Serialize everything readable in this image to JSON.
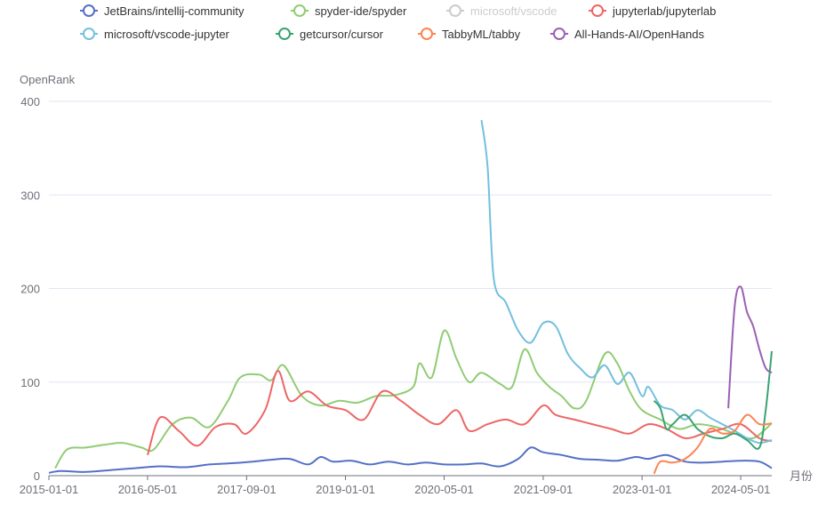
{
  "chart_data": {
    "type": "line",
    "title": "",
    "ylabel": "OpenRank",
    "xlabel": "月份",
    "ylim": [
      0,
      400
    ],
    "y_ticks": [
      0,
      100,
      200,
      300,
      400
    ],
    "x_ticks": [
      "2015-01-01",
      "2016-05-01",
      "2017-09-01",
      "2019-01-01",
      "2020-05-01",
      "2021-09-01",
      "2023-01-01",
      "2024-05-01"
    ],
    "x_range": [
      "2015-01-01",
      "2024-10-01"
    ],
    "grid": true,
    "legend_position": "top",
    "series": [
      {
        "name": "JetBrains/intellij-community",
        "color": "#5470c6",
        "visible": true,
        "points": [
          [
            "2015-01-01",
            3
          ],
          [
            "2015-03-01",
            5
          ],
          [
            "2015-07-01",
            4
          ],
          [
            "2015-11-01",
            6
          ],
          [
            "2016-03-01",
            8
          ],
          [
            "2016-07-01",
            10
          ],
          [
            "2016-11-01",
            9
          ],
          [
            "2017-03-01",
            12
          ],
          [
            "2017-06-01",
            13
          ],
          [
            "2017-10-01",
            15
          ],
          [
            "2018-01-01",
            17
          ],
          [
            "2018-04-01",
            18
          ],
          [
            "2018-07-01",
            12
          ],
          [
            "2018-09-01",
            20
          ],
          [
            "2018-11-01",
            15
          ],
          [
            "2019-02-01",
            16
          ],
          [
            "2019-05-01",
            12
          ],
          [
            "2019-08-01",
            15
          ],
          [
            "2019-11-01",
            12
          ],
          [
            "2020-02-01",
            14
          ],
          [
            "2020-05-01",
            12
          ],
          [
            "2020-08-01",
            12
          ],
          [
            "2020-11-01",
            13
          ],
          [
            "2021-02-01",
            10
          ],
          [
            "2021-05-01",
            18
          ],
          [
            "2021-07-01",
            30
          ],
          [
            "2021-09-01",
            25
          ],
          [
            "2021-12-01",
            22
          ],
          [
            "2022-03-01",
            18
          ],
          [
            "2022-06-01",
            17
          ],
          [
            "2022-09-01",
            16
          ],
          [
            "2022-12-01",
            20
          ],
          [
            "2023-02-01",
            18
          ],
          [
            "2023-05-01",
            22
          ],
          [
            "2023-08-01",
            15
          ],
          [
            "2023-11-01",
            14
          ],
          [
            "2024-02-01",
            15
          ],
          [
            "2024-05-01",
            16
          ],
          [
            "2024-08-01",
            15
          ],
          [
            "2024-10-01",
            8
          ]
        ]
      },
      {
        "name": "spyder-ide/spyder",
        "color": "#91cc75",
        "visible": true,
        "points": [
          [
            "2015-02-01",
            8
          ],
          [
            "2015-04-01",
            28
          ],
          [
            "2015-07-01",
            30
          ],
          [
            "2015-10-01",
            33
          ],
          [
            "2016-01-01",
            35
          ],
          [
            "2016-04-01",
            30
          ],
          [
            "2016-06-01",
            28
          ],
          [
            "2016-09-01",
            55
          ],
          [
            "2016-12-01",
            62
          ],
          [
            "2017-03-01",
            52
          ],
          [
            "2017-06-01",
            80
          ],
          [
            "2017-08-01",
            105
          ],
          [
            "2017-11-01",
            108
          ],
          [
            "2018-01-01",
            102
          ],
          [
            "2018-03-01",
            118
          ],
          [
            "2018-06-01",
            85
          ],
          [
            "2018-09-01",
            75
          ],
          [
            "2018-12-01",
            80
          ],
          [
            "2019-03-01",
            78
          ],
          [
            "2019-06-01",
            85
          ],
          [
            "2019-09-01",
            86
          ],
          [
            "2019-12-01",
            95
          ],
          [
            "2020-01-01",
            120
          ],
          [
            "2020-03-01",
            105
          ],
          [
            "2020-05-01",
            155
          ],
          [
            "2020-07-01",
            125
          ],
          [
            "2020-09-01",
            100
          ],
          [
            "2020-11-01",
            110
          ],
          [
            "2021-02-01",
            98
          ],
          [
            "2021-04-01",
            95
          ],
          [
            "2021-06-01",
            135
          ],
          [
            "2021-08-01",
            110
          ],
          [
            "2021-10-01",
            95
          ],
          [
            "2021-12-01",
            85
          ],
          [
            "2022-02-01",
            72
          ],
          [
            "2022-04-01",
            80
          ],
          [
            "2022-07-01",
            130
          ],
          [
            "2022-09-01",
            120
          ],
          [
            "2022-11-01",
            90
          ],
          [
            "2023-01-01",
            70
          ],
          [
            "2023-04-01",
            60
          ],
          [
            "2023-07-01",
            50
          ],
          [
            "2023-10-01",
            55
          ],
          [
            "2024-01-01",
            52
          ],
          [
            "2024-04-01",
            45
          ],
          [
            "2024-07-01",
            40
          ],
          [
            "2024-10-01",
            56
          ]
        ]
      },
      {
        "name": "microsoft/vscode",
        "color": "#cccccc",
        "visible": false,
        "points": []
      },
      {
        "name": "jupyterlab/jupyterlab",
        "color": "#ee6666",
        "visible": true,
        "points": [
          [
            "2016-05-01",
            22
          ],
          [
            "2016-07-01",
            62
          ],
          [
            "2016-10-01",
            48
          ],
          [
            "2017-01-01",
            32
          ],
          [
            "2017-04-01",
            52
          ],
          [
            "2017-07-01",
            55
          ],
          [
            "2017-09-01",
            45
          ],
          [
            "2017-12-01",
            70
          ],
          [
            "2018-02-01",
            112
          ],
          [
            "2018-04-01",
            80
          ],
          [
            "2018-07-01",
            90
          ],
          [
            "2018-10-01",
            75
          ],
          [
            "2019-01-01",
            70
          ],
          [
            "2019-04-01",
            60
          ],
          [
            "2019-07-01",
            90
          ],
          [
            "2019-10-01",
            80
          ],
          [
            "2020-01-01",
            65
          ],
          [
            "2020-04-01",
            55
          ],
          [
            "2020-07-01",
            70
          ],
          [
            "2020-09-01",
            48
          ],
          [
            "2020-12-01",
            55
          ],
          [
            "2021-03-01",
            60
          ],
          [
            "2021-06-01",
            55
          ],
          [
            "2021-09-01",
            75
          ],
          [
            "2021-11-01",
            65
          ],
          [
            "2022-02-01",
            60
          ],
          [
            "2022-05-01",
            55
          ],
          [
            "2022-08-01",
            50
          ],
          [
            "2022-11-01",
            45
          ],
          [
            "2023-02-01",
            55
          ],
          [
            "2023-05-01",
            50
          ],
          [
            "2023-08-01",
            40
          ],
          [
            "2023-11-01",
            45
          ],
          [
            "2024-02-01",
            50
          ],
          [
            "2024-05-01",
            55
          ],
          [
            "2024-08-01",
            40
          ],
          [
            "2024-10-01",
            37
          ]
        ]
      },
      {
        "name": "microsoft/vscode-jupyter",
        "color": "#73c0de",
        "visible": true,
        "points": [
          [
            "2020-11-01",
            380
          ],
          [
            "2020-12-01",
            330
          ],
          [
            "2021-01-01",
            210
          ],
          [
            "2021-03-01",
            185
          ],
          [
            "2021-05-01",
            155
          ],
          [
            "2021-07-01",
            142
          ],
          [
            "2021-09-01",
            163
          ],
          [
            "2021-11-01",
            160
          ],
          [
            "2022-01-01",
            130
          ],
          [
            "2022-03-01",
            115
          ],
          [
            "2022-05-01",
            105
          ],
          [
            "2022-07-01",
            118
          ],
          [
            "2022-09-01",
            98
          ],
          [
            "2022-11-01",
            110
          ],
          [
            "2023-01-01",
            85
          ],
          [
            "2023-02-01",
            95
          ],
          [
            "2023-04-01",
            75
          ],
          [
            "2023-06-01",
            70
          ],
          [
            "2023-08-01",
            60
          ],
          [
            "2023-10-01",
            70
          ],
          [
            "2023-12-01",
            62
          ],
          [
            "2024-02-01",
            55
          ],
          [
            "2024-04-01",
            48
          ],
          [
            "2024-06-01",
            40
          ],
          [
            "2024-08-01",
            35
          ],
          [
            "2024-10-01",
            38
          ]
        ]
      },
      {
        "name": "getcursor/cursor",
        "color": "#3ba272",
        "visible": true,
        "points": [
          [
            "2023-03-01",
            80
          ],
          [
            "2023-04-01",
            72
          ],
          [
            "2023-05-01",
            50
          ],
          [
            "2023-06-01",
            55
          ],
          [
            "2023-08-01",
            65
          ],
          [
            "2023-10-01",
            50
          ],
          [
            "2023-12-01",
            42
          ],
          [
            "2024-02-01",
            40
          ],
          [
            "2024-04-01",
            45
          ],
          [
            "2024-06-01",
            38
          ],
          [
            "2024-08-01",
            30
          ],
          [
            "2024-09-01",
            70
          ],
          [
            "2024-10-01",
            133
          ]
        ]
      },
      {
        "name": "TabbyML/tabby",
        "color": "#fc8452",
        "visible": true,
        "points": [
          [
            "2023-03-01",
            2
          ],
          [
            "2023-04-01",
            15
          ],
          [
            "2023-06-01",
            14
          ],
          [
            "2023-08-01",
            18
          ],
          [
            "2023-10-01",
            30
          ],
          [
            "2023-12-01",
            50
          ],
          [
            "2024-02-01",
            45
          ],
          [
            "2024-04-01",
            48
          ],
          [
            "2024-06-01",
            65
          ],
          [
            "2024-08-01",
            55
          ],
          [
            "2024-10-01",
            56
          ]
        ]
      },
      {
        "name": "All-Hands-AI/OpenHands",
        "color": "#9a60b4",
        "visible": true,
        "points": [
          [
            "2024-03-01",
            72
          ],
          [
            "2024-04-01",
            180
          ],
          [
            "2024-05-01",
            202
          ],
          [
            "2024-06-01",
            175
          ],
          [
            "2024-07-01",
            160
          ],
          [
            "2024-08-01",
            135
          ],
          [
            "2024-09-01",
            115
          ],
          [
            "2024-10-01",
            110
          ]
        ]
      }
    ]
  }
}
